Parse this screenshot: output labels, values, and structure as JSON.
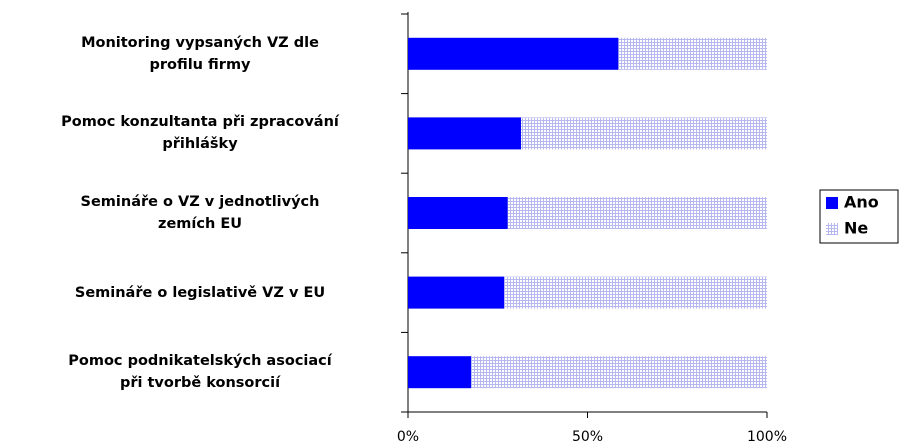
{
  "chart_data": {
    "type": "stacked-barh",
    "categories": [
      "Monitoring vypsaných VZ dle\nprofilu firmy",
      "Pomoc konzultanta při zpracování\npřihlášky",
      "Semináře o VZ v jednotlivých\nzemích EU",
      "Semináře o legislativě VZ v EU",
      "Pomoc podnikatelských asociací\npři tvorbě konsorcií"
    ],
    "series": [
      {
        "name": "Ano",
        "color": "#0000ff",
        "values": [
          58.6,
          31.5,
          27.8,
          26.8,
          17.6
        ]
      },
      {
        "name": "Ne",
        "color": "#b8b8f0",
        "pattern": "grid",
        "values": [
          41.4,
          68.5,
          72.2,
          73.2,
          82.4
        ]
      }
    ],
    "xlim": [
      0,
      100
    ],
    "xticks": [
      {
        "value": 0,
        "label": "0%"
      },
      {
        "value": 50,
        "label": "50%"
      },
      {
        "value": 100,
        "label": "100%"
      }
    ],
    "legend": "right"
  }
}
